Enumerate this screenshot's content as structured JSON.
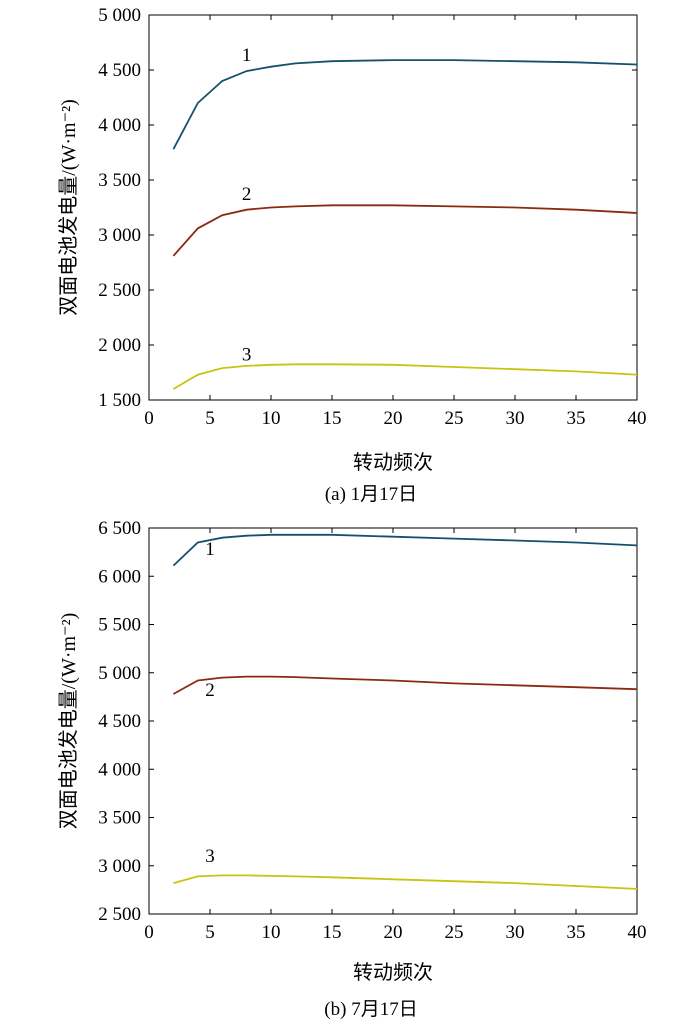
{
  "chart_data": [
    {
      "type": "line",
      "caption": "(a) 1月17日",
      "xlabel": "转动频次",
      "ylabel": "双面电池发电量/(W·m⁻²)",
      "xlim": [
        0,
        40
      ],
      "ylim": [
        1500,
        5000
      ],
      "xticks": [
        0,
        5,
        10,
        15,
        20,
        25,
        30,
        35,
        40
      ],
      "xtick_labels": [
        "0",
        "5",
        "10",
        "15",
        "20",
        "25",
        "30",
        "35",
        "40"
      ],
      "yticks": [
        1500,
        2000,
        2500,
        3000,
        3500,
        4000,
        4500,
        5000
      ],
      "ytick_labels": [
        "1 500",
        "2 000",
        "2 500",
        "3 000",
        "3 500",
        "4 000",
        "4 500",
        "5 000"
      ],
      "grid": false,
      "x": [
        2,
        4,
        6,
        8,
        10,
        12,
        15,
        20,
        25,
        30,
        35,
        40
      ],
      "series": [
        {
          "name": "1",
          "color": "#16506e",
          "label_at": [
            8,
            4580
          ],
          "values": [
            3780,
            4200,
            4400,
            4490,
            4530,
            4560,
            4580,
            4590,
            4590,
            4580,
            4570,
            4550
          ]
        },
        {
          "name": "2",
          "color": "#8b2a12",
          "label_at": [
            8,
            3320
          ],
          "values": [
            2810,
            3060,
            3180,
            3230,
            3250,
            3260,
            3270,
            3270,
            3260,
            3250,
            3230,
            3200
          ]
        },
        {
          "name": "3",
          "color": "#c8c412",
          "label_at": [
            8,
            1860
          ],
          "values": [
            1600,
            1730,
            1790,
            1810,
            1820,
            1825,
            1825,
            1820,
            1800,
            1780,
            1760,
            1730
          ]
        }
      ]
    },
    {
      "type": "line",
      "caption": "(b) 7月17日",
      "xlabel": "转动频次",
      "ylabel": "双面电池发电量/(W·m⁻²)",
      "xlim": [
        0,
        40
      ],
      "ylim": [
        2500,
        6500
      ],
      "xticks": [
        0,
        5,
        10,
        15,
        20,
        25,
        30,
        35,
        40
      ],
      "xtick_labels": [
        "0",
        "5",
        "10",
        "15",
        "20",
        "25",
        "30",
        "35",
        "40"
      ],
      "yticks": [
        2500,
        3000,
        3500,
        4000,
        4500,
        5000,
        5500,
        6000,
        6500
      ],
      "ytick_labels": [
        "2 500",
        "3 000",
        "3 500",
        "4 000",
        "4 500",
        "5 000",
        "5 500",
        "6 000",
        "6 500"
      ],
      "grid": false,
      "x": [
        2,
        4,
        6,
        8,
        10,
        12,
        15,
        20,
        25,
        30,
        35,
        40
      ],
      "series": [
        {
          "name": "1",
          "color": "#16506e",
          "label_at": [
            5,
            6220
          ],
          "values": [
            6110,
            6350,
            6400,
            6420,
            6430,
            6430,
            6430,
            6410,
            6390,
            6370,
            6350,
            6320
          ]
        },
        {
          "name": "2",
          "color": "#8b2a12",
          "label_at": [
            5,
            4760
          ],
          "values": [
            4780,
            4920,
            4950,
            4960,
            4960,
            4955,
            4940,
            4920,
            4890,
            4870,
            4850,
            4830
          ]
        },
        {
          "name": "3",
          "color": "#c8c412",
          "label_at": [
            5,
            3040
          ],
          "values": [
            2820,
            2890,
            2900,
            2900,
            2895,
            2890,
            2880,
            2860,
            2840,
            2820,
            2790,
            2760
          ]
        }
      ]
    }
  ]
}
